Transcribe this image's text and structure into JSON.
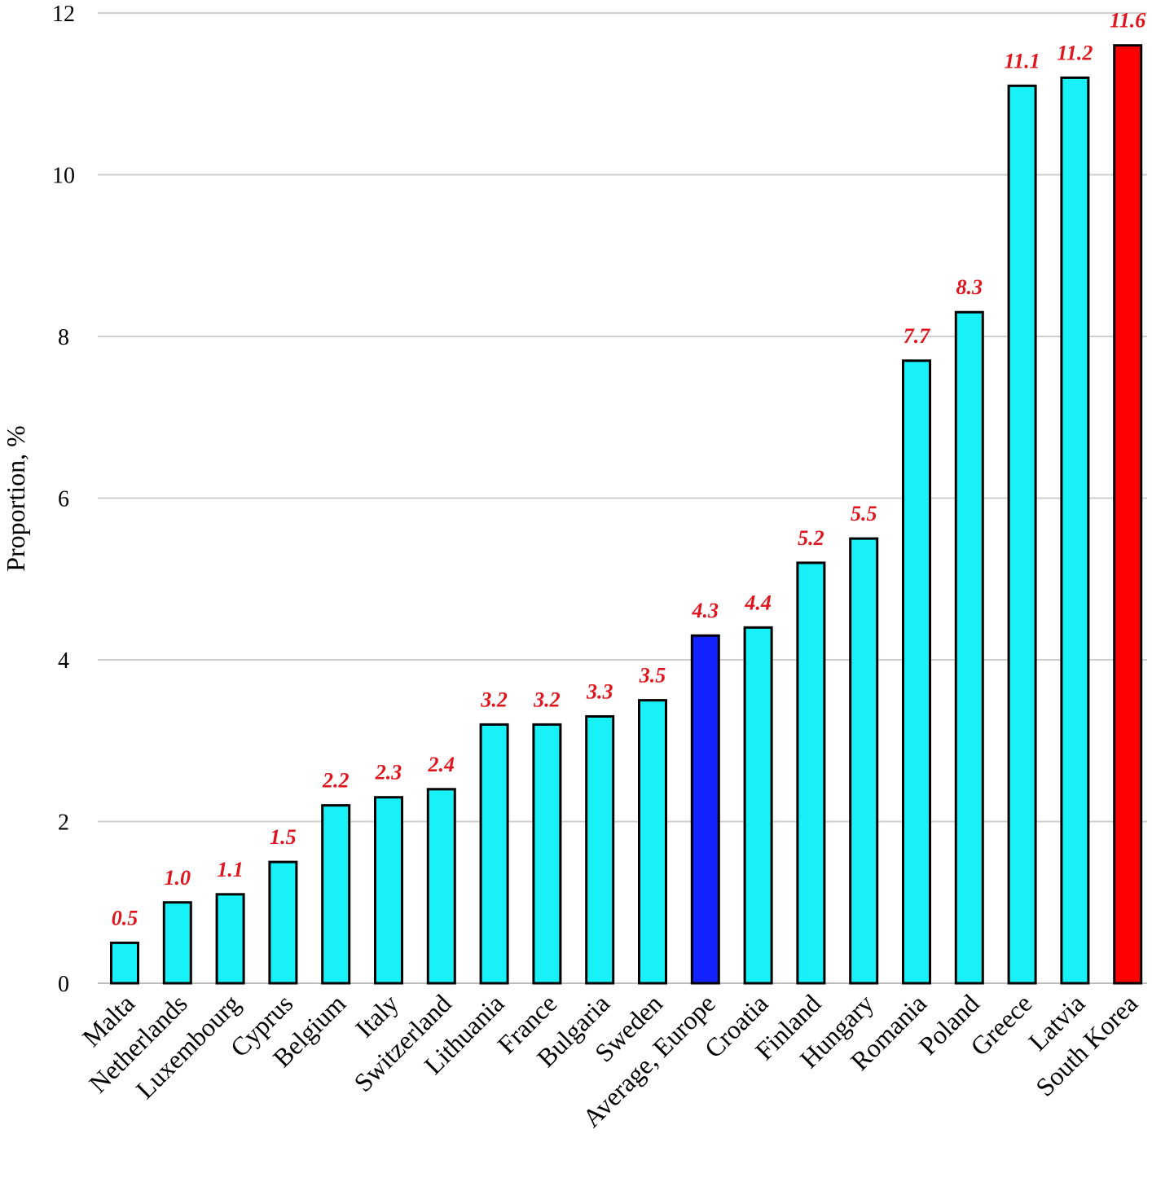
{
  "chart_data": {
    "type": "bar",
    "title": "",
    "xlabel": "",
    "ylabel": "Proportion, %",
    "ylim": [
      0,
      12
    ],
    "yticks": [
      0,
      2,
      4,
      6,
      8,
      10,
      12
    ],
    "grid": true,
    "categories": [
      "Malta",
      "Netherlands",
      "Luxembourg",
      "Cyprus",
      "Belgium",
      "Italy",
      "Switzerland",
      "Lithuania",
      "France",
      "Bulgaria",
      "Sweden",
      "Average, Europe",
      "Croatia",
      "Finland",
      "Hungary",
      "Romania",
      "Poland",
      "Greece",
      "Latvia",
      "South Korea"
    ],
    "values": [
      0.5,
      1.0,
      1.1,
      1.5,
      2.2,
      2.3,
      2.4,
      3.2,
      3.2,
      3.3,
      3.5,
      4.3,
      4.4,
      5.2,
      5.5,
      7.7,
      8.3,
      11.1,
      11.2,
      11.6
    ],
    "value_labels": [
      "0.5",
      "1.0",
      "1.1",
      "1.5",
      "2.2",
      "2.3",
      "2.4",
      "3.2",
      "3.2",
      "3.3",
      "3.5",
      "4.3",
      "4.4",
      "5.2",
      "5.5",
      "7.7",
      "8.3",
      "11.1",
      "11.2",
      "11.6"
    ],
    "bar_colors": [
      "#17f1f7",
      "#17f1f7",
      "#17f1f7",
      "#17f1f7",
      "#17f1f7",
      "#17f1f7",
      "#17f1f7",
      "#17f1f7",
      "#17f1f7",
      "#17f1f7",
      "#17f1f7",
      "#1323ff",
      "#17f1f7",
      "#17f1f7",
      "#17f1f7",
      "#17f1f7",
      "#17f1f7",
      "#17f1f7",
      "#17f1f7",
      "#ff0000"
    ],
    "label_color": "#e0141c",
    "gridline_color": "#cfcfcf"
  }
}
